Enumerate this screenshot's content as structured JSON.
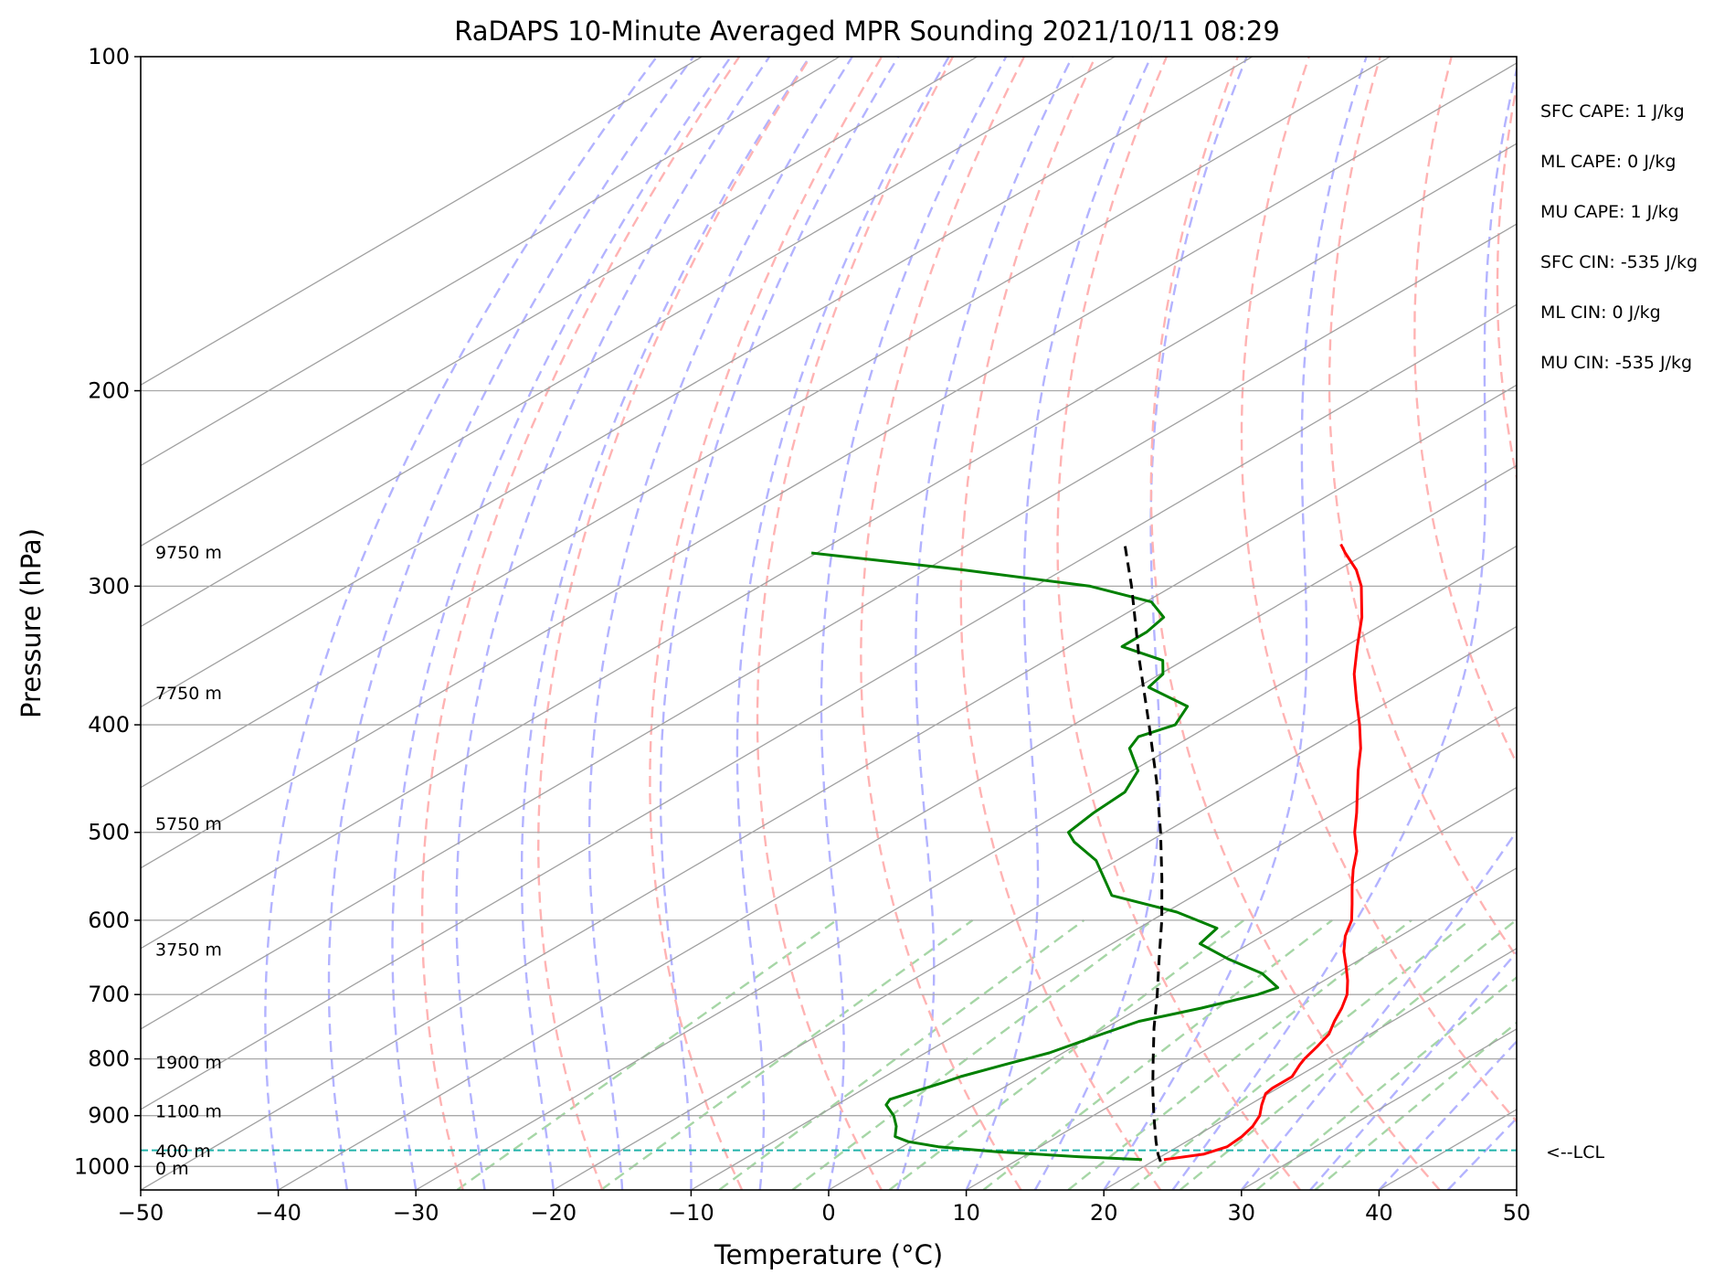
{
  "chart_data": {
    "type": "skew-t log-p",
    "title": "RaDAPS 10-Minute Averaged MPR Sounding 2021/10/11 08:29",
    "xlabel": "Temperature (°C)",
    "ylabel": "Pressure (hPa)",
    "xlim": [
      -50,
      50
    ],
    "ylim": [
      1050,
      100
    ],
    "y_scale": "log",
    "x_ticks": [
      "−50",
      "−40",
      "−30",
      "−20",
      "−10",
      "0",
      "10",
      "20",
      "30",
      "40",
      "50"
    ],
    "y_ticks": [
      "100",
      "200",
      "300",
      "400",
      "500",
      "600",
      "700",
      "800",
      "900",
      "1000"
    ],
    "grid": true,
    "background_lines": {
      "isotherms_color": "#a0a0a0",
      "dry_adiabats_color": "#ffb3b3",
      "moist_adiabats_color": "#b3b3ff",
      "mixing_ratio_color": "#a6d6a6"
    },
    "series": [
      {
        "kind": "temperature",
        "color": "#ff0000",
        "points": [
          [
            986,
            20.6
          ],
          [
            975,
            22.8
          ],
          [
            960,
            23.6
          ],
          [
            940,
            23.4
          ],
          [
            920,
            22.9
          ],
          [
            900,
            22.1
          ],
          [
            880,
            20.9
          ],
          [
            860,
            19.8
          ],
          [
            850,
            19.6
          ],
          [
            830,
            19.6
          ],
          [
            810,
            18.7
          ],
          [
            800,
            18.3
          ],
          [
            780,
            17.7
          ],
          [
            760,
            17.0
          ],
          [
            740,
            15.8
          ],
          [
            720,
            14.7
          ],
          [
            700,
            13.4
          ],
          [
            680,
            11.7
          ],
          [
            660,
            9.8
          ],
          [
            640,
            7.8
          ],
          [
            620,
            6.0
          ],
          [
            600,
            4.5
          ],
          [
            580,
            2.5
          ],
          [
            560,
            0.4
          ],
          [
            540,
            -1.7
          ],
          [
            520,
            -3.7
          ],
          [
            500,
            -6.2
          ],
          [
            480,
            -8.5
          ],
          [
            460,
            -11.0
          ],
          [
            440,
            -13.6
          ],
          [
            420,
            -16.2
          ],
          [
            400,
            -19.2
          ],
          [
            380,
            -22.5
          ],
          [
            360,
            -25.9
          ],
          [
            340,
            -29.1
          ],
          [
            320,
            -32.4
          ],
          [
            300,
            -36.3
          ],
          [
            290,
            -38.7
          ],
          [
            280,
            -41.6
          ],
          [
            275,
            -43.0
          ]
        ]
      },
      {
        "kind": "dewpoint",
        "color": "#008000",
        "points": [
          [
            986,
            19.0
          ],
          [
            980,
            14.0
          ],
          [
            970,
            7.5
          ],
          [
            960,
            2.6
          ],
          [
            950,
            -0.2
          ],
          [
            940,
            -1.8
          ],
          [
            920,
            -3.0
          ],
          [
            900,
            -4.5
          ],
          [
            880,
            -6.4
          ],
          [
            870,
            -6.8
          ],
          [
            860,
            -6.2
          ],
          [
            840,
            -5.0
          ],
          [
            830,
            -4.5
          ],
          [
            810,
            -2.8
          ],
          [
            790,
            -1.0
          ],
          [
            760,
            0.5
          ],
          [
            740,
            1.6
          ],
          [
            720,
            4.5
          ],
          [
            700,
            6.9
          ],
          [
            690,
            7.5
          ],
          [
            670,
            4.6
          ],
          [
            650,
            0.3
          ],
          [
            630,
            -3.6
          ],
          [
            610,
            -4.3
          ],
          [
            590,
            -9.2
          ],
          [
            570,
            -16.0
          ],
          [
            550,
            -18.7
          ],
          [
            530,
            -21.5
          ],
          [
            510,
            -25.4
          ],
          [
            500,
            -27.0
          ],
          [
            480,
            -27.6
          ],
          [
            460,
            -27.9
          ],
          [
            440,
            -29.6
          ],
          [
            420,
            -33.0
          ],
          [
            410,
            -33.8
          ],
          [
            400,
            -32.6
          ],
          [
            385,
            -34.0
          ],
          [
            370,
            -39.2
          ],
          [
            360,
            -39.8
          ],
          [
            350,
            -41.5
          ],
          [
            340,
            -46.2
          ],
          [
            330,
            -46.2
          ],
          [
            320,
            -46.8
          ],
          [
            310,
            -49.6
          ],
          [
            300,
            -56.0
          ],
          [
            290,
            -67.3
          ],
          [
            285,
            -73.8
          ],
          [
            280,
            -80.4
          ]
        ]
      },
      {
        "kind": "parcel",
        "color": "#000000",
        "points": [
          [
            990,
            20.6
          ],
          [
            975,
            19.5
          ],
          [
            950,
            17.8
          ],
          [
            900,
            14.4
          ],
          [
            850,
            10.9
          ],
          [
            800,
            7.3
          ],
          [
            750,
            3.5
          ],
          [
            700,
            -0.4
          ],
          [
            650,
            -4.7
          ],
          [
            600,
            -9.3
          ],
          [
            550,
            -14.5
          ],
          [
            500,
            -20.3
          ],
          [
            450,
            -26.9
          ],
          [
            400,
            -34.5
          ],
          [
            350,
            -43.2
          ],
          [
            300,
            -53.0
          ],
          [
            275,
            -58.7
          ]
        ]
      }
    ],
    "lcl_pressure": 967,
    "lcl_label": "<--LCL",
    "lcl_color": "#20b2aa",
    "height_labels": [
      {
        "text": "9750 m",
        "p": 280
      },
      {
        "text": "7750 m",
        "p": 375
      },
      {
        "text": "5750 m",
        "p": 492
      },
      {
        "text": "3750 m",
        "p": 638
      },
      {
        "text": "1900 m",
        "p": 807
      },
      {
        "text": "1100 m",
        "p": 893
      },
      {
        "text": "400 m",
        "p": 970
      },
      {
        "text": "0 m",
        "p": 1005
      }
    ],
    "indices": [
      "SFC CAPE: 1 J/kg",
      "ML CAPE: 0 J/kg",
      "MU CAPE: 1 J/kg",
      "SFC CIN: -535 J/kg",
      "ML CIN: 0 J/kg",
      "MU CIN: -535 J/kg"
    ]
  }
}
